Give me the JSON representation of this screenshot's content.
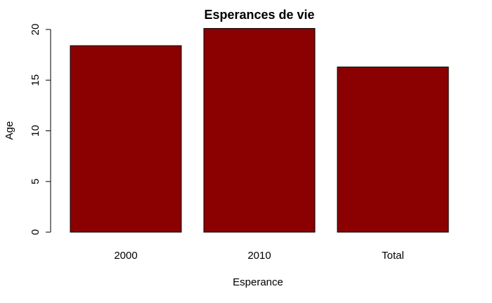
{
  "chart_data": {
    "type": "bar",
    "title": "Esperances de vie",
    "xlabel": "Esperance",
    "ylabel": "Age",
    "categories": [
      "2000",
      "2010",
      "Total"
    ],
    "values": [
      18.4,
      20.1,
      16.3
    ],
    "ylim": [
      0,
      20
    ],
    "yticks": [
      0,
      5,
      10,
      15,
      20
    ],
    "bar_color": "#8b0000",
    "grid": false
  }
}
